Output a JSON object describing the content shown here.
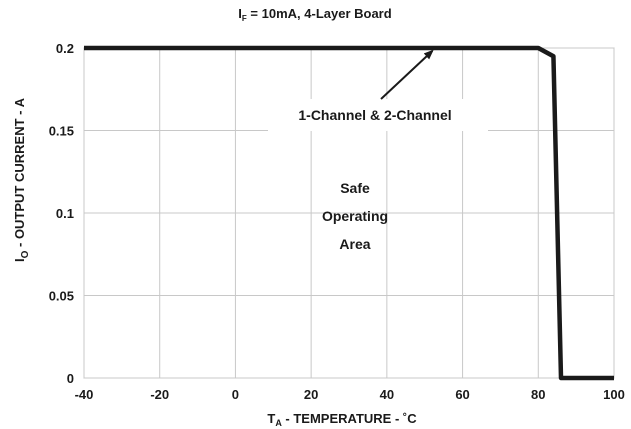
{
  "chart_data": {
    "type": "line",
    "title_main": "I",
    "title_sub": "F",
    "title_rest": " = 10mA, 4-Layer Board",
    "xlabel_main": "T",
    "xlabel_sub": "A",
    "xlabel_rest": " - TEMPERATURE - ˚C",
    "ylabel_main": "I",
    "ylabel_sub": "O",
    "ylabel_rest": " - OUTPUT CURRENT - A",
    "xlim": [
      -40,
      100
    ],
    "ylim": [
      0,
      0.2
    ],
    "x_ticks": [
      -40,
      -20,
      0,
      20,
      40,
      60,
      80,
      100
    ],
    "x_tick_labels": [
      "-40",
      "-20",
      "0",
      "20",
      "40",
      "60",
      "80",
      "100"
    ],
    "y_ticks": [
      0,
      0.05,
      0.1,
      0.15,
      0.2
    ],
    "y_tick_labels": [
      "0",
      "0.05",
      "0.1",
      "0.15",
      "0.2"
    ],
    "grid": true,
    "series": [
      {
        "x": [
          -40,
          80,
          84,
          86,
          100
        ],
        "y": [
          0.2,
          0.2,
          0.195,
          0,
          0
        ],
        "color": "#1a1a1a"
      }
    ],
    "annotations": {
      "curve_label": "1-Channel & 2-Channel",
      "curve_label_point": [
        52,
        0.2
      ],
      "region_lines": [
        "Safe",
        "Operating",
        "Area"
      ]
    }
  }
}
